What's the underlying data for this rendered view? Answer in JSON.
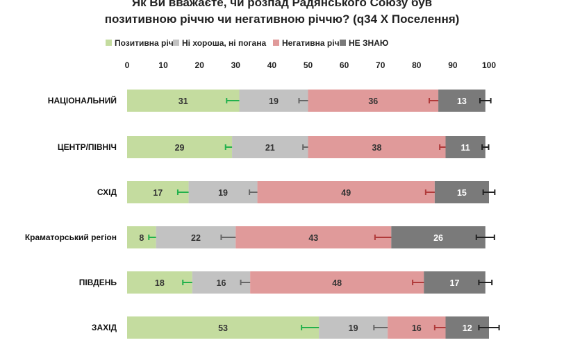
{
  "chart_data": {
    "type": "bar",
    "orientation": "horizontal",
    "stacked": true,
    "title_line1": "Як Ви вважаєте, чи розпад Радянського Союзу був",
    "title_line2": "позитивною річчю чи негативною річчю? (q34 X Поселення)",
    "xlim": [
      0,
      100
    ],
    "xticks": [
      0,
      10,
      20,
      30,
      40,
      50,
      60,
      70,
      80,
      90,
      100
    ],
    "legend_position": "top",
    "grid": false,
    "categories": [
      "НАЦІОНАЛЬНИЙ",
      "ЦЕНТР/ПІВНІЧ",
      "СХІД",
      "Краматорський регіон",
      "ПІВДЕНЬ",
      "ЗАХІД"
    ],
    "series": [
      {
        "name": "Позитивна річ",
        "color": "#c4dc9f",
        "error_color": "#22b14c",
        "values": [
          31,
          29,
          17,
          8,
          18,
          53
        ],
        "errors": [
          3.5,
          1.8,
          3,
          2,
          2.6,
          4.8
        ]
      },
      {
        "name": "Ні хороша, ні погана",
        "color": "#c2c2c2",
        "error_color": "#666666",
        "values": [
          19,
          21,
          19,
          22,
          16,
          19
        ],
        "errors": [
          2.5,
          1.4,
          2.2,
          4,
          2.6,
          3.8
        ]
      },
      {
        "name": "Негативна річ",
        "color": "#e09a9a",
        "error_color": "#b03a3a",
        "values": [
          36,
          38,
          49,
          43,
          48,
          16
        ],
        "errors": [
          2.5,
          1.6,
          2.5,
          4.5,
          3.1,
          3
        ]
      },
      {
        "name": "НЕ ЗНАЮ",
        "color": "#7a7a7a",
        "error_color": "#222222",
        "values": [
          13,
          11,
          15,
          26,
          17,
          12
        ],
        "errors": [
          1.5,
          0.9,
          1.6,
          2.5,
          1.8,
          2.8
        ]
      }
    ]
  }
}
